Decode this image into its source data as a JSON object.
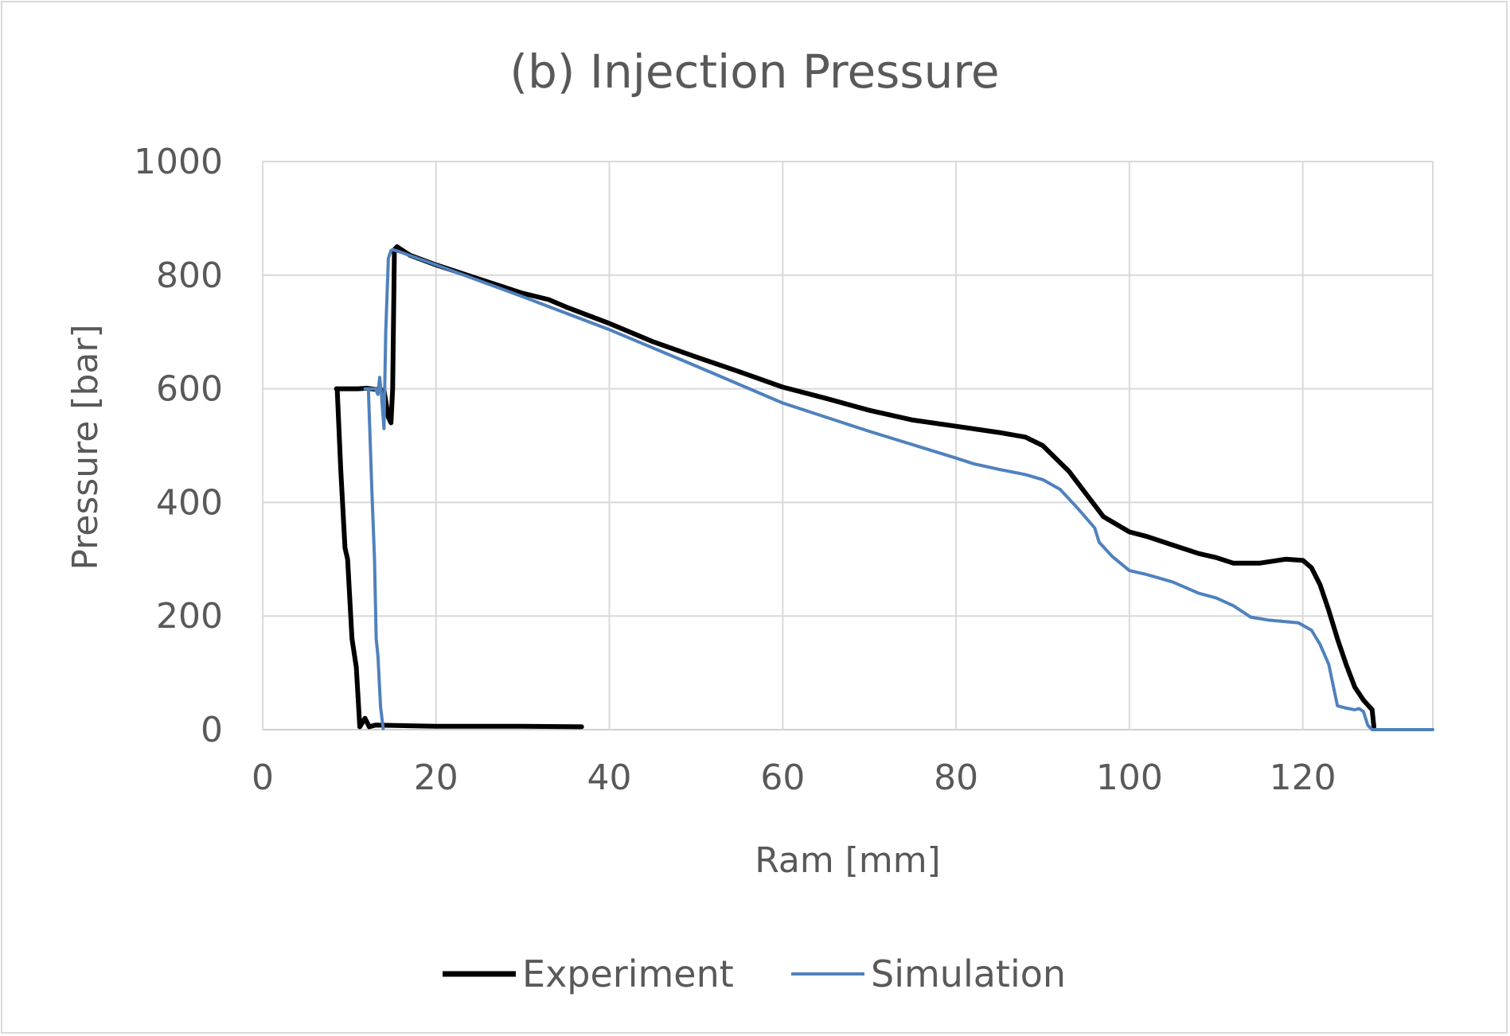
{
  "chart_data": {
    "type": "line",
    "title": "(b) Injection Pressure",
    "xlabel": "Ram [mm]",
    "ylabel": "Pressure [bar]",
    "xlim": [
      0,
      135
    ],
    "ylim": [
      0,
      1000
    ],
    "x_ticks": [
      "0",
      "20",
      "40",
      "60",
      "80",
      "100",
      "120"
    ],
    "y_ticks": [
      "0",
      "200",
      "400",
      "600",
      "800",
      "1000"
    ],
    "grid": true,
    "legend_position": "bottom",
    "series": [
      {
        "name": "Experiment",
        "color": "#000000",
        "points": [
          [
            8.5,
            600
          ],
          [
            9.0,
            600
          ],
          [
            10.0,
            600
          ],
          [
            11.0,
            600
          ],
          [
            12.0,
            601
          ],
          [
            13.0,
            599
          ],
          [
            14.0,
            597
          ],
          [
            14.5,
            550
          ],
          [
            14.8,
            540
          ],
          [
            15.0,
            600
          ],
          [
            15.2,
            845
          ],
          [
            15.5,
            850
          ],
          [
            16.0,
            845
          ],
          [
            17.0,
            835
          ],
          [
            20,
            818
          ],
          [
            25,
            793
          ],
          [
            30,
            768
          ],
          [
            33,
            757
          ],
          [
            35,
            744
          ],
          [
            40,
            715
          ],
          [
            45,
            683
          ],
          [
            50,
            656
          ],
          [
            55,
            630
          ],
          [
            60,
            603
          ],
          [
            65,
            583
          ],
          [
            70,
            562
          ],
          [
            75,
            545
          ],
          [
            80,
            534
          ],
          [
            85,
            523
          ],
          [
            88,
            515
          ],
          [
            90,
            500
          ],
          [
            93,
            455
          ],
          [
            95,
            415
          ],
          [
            97,
            375
          ],
          [
            100,
            348
          ],
          [
            102,
            340
          ],
          [
            105,
            325
          ],
          [
            108,
            310
          ],
          [
            110,
            303
          ],
          [
            112,
            293
          ],
          [
            115,
            293
          ],
          [
            118,
            300
          ],
          [
            120,
            298
          ],
          [
            121,
            285
          ],
          [
            122,
            255
          ],
          [
            123,
            210
          ],
          [
            124,
            160
          ],
          [
            125,
            115
          ],
          [
            126,
            75
          ],
          [
            127,
            52
          ],
          [
            128,
            35
          ],
          [
            128.2,
            5
          ]
        ]
      },
      {
        "name": "Simulation",
        "color": "#4f81bd",
        "points": [
          [
            11.8,
            600
          ],
          [
            12.5,
            600
          ],
          [
            13.0,
            600
          ],
          [
            13.3,
            590
          ],
          [
            13.5,
            620
          ],
          [
            13.7,
            590
          ],
          [
            14.0,
            530
          ],
          [
            14.2,
            700
          ],
          [
            14.5,
            830
          ],
          [
            14.8,
            843
          ],
          [
            15.0,
            845
          ],
          [
            16.0,
            840
          ],
          [
            20,
            818
          ],
          [
            30,
            762
          ],
          [
            40,
            704
          ],
          [
            50,
            640
          ],
          [
            60,
            575
          ],
          [
            70,
            525
          ],
          [
            80,
            478
          ],
          [
            82,
            468
          ],
          [
            85,
            458
          ],
          [
            88,
            449
          ],
          [
            90,
            440
          ],
          [
            92,
            423
          ],
          [
            94,
            390
          ],
          [
            96,
            355
          ],
          [
            96.5,
            330
          ],
          [
            98,
            305
          ],
          [
            100,
            280
          ],
          [
            102,
            273
          ],
          [
            105,
            260
          ],
          [
            108,
            240
          ],
          [
            110,
            232
          ],
          [
            112,
            218
          ],
          [
            114,
            198
          ],
          [
            116,
            193
          ],
          [
            118,
            190
          ],
          [
            119.5,
            188
          ],
          [
            121,
            175
          ],
          [
            122,
            150
          ],
          [
            123,
            115
          ],
          [
            124,
            42
          ],
          [
            125,
            38
          ],
          [
            126,
            35
          ],
          [
            126.5,
            37
          ],
          [
            127,
            32
          ],
          [
            127.5,
            8
          ],
          [
            128,
            0
          ],
          [
            135,
            0
          ]
        ]
      },
      {
        "name": "",
        "color": "#000000",
        "points": [
          [
            8.6,
            600
          ],
          [
            9.0,
            460
          ],
          [
            9.5,
            320
          ],
          [
            9.8,
            300
          ],
          [
            10.3,
            160
          ],
          [
            10.8,
            110
          ],
          [
            11.2,
            5
          ],
          [
            11.8,
            20
          ],
          [
            12.3,
            5
          ],
          [
            13.0,
            8
          ],
          [
            20,
            6
          ],
          [
            30,
            6
          ],
          [
            36.8,
            5
          ]
        ]
      },
      {
        "name": "",
        "color": "#4f81bd",
        "points": [
          [
            12.2,
            600
          ],
          [
            12.6,
            420
          ],
          [
            12.9,
            300
          ],
          [
            13.1,
            160
          ],
          [
            13.3,
            130
          ],
          [
            13.6,
            40
          ],
          [
            13.9,
            2
          ]
        ]
      }
    ]
  }
}
